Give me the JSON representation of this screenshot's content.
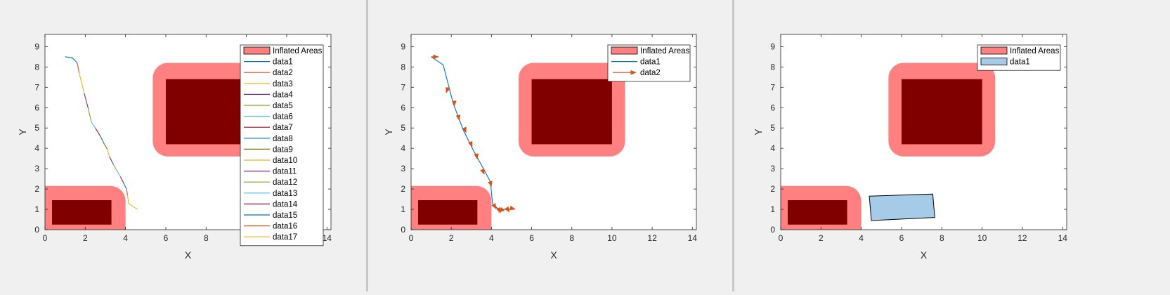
{
  "colors": {
    "inflated": "#ff8080",
    "obstacle": "#800000",
    "plot_background": "#ffffff",
    "figure_background": "#f0f0f0",
    "axis": "#262626",
    "arrow": "#d95319",
    "vehicle_fill": "#a6cbe8"
  },
  "chart_data": [
    {
      "type": "line",
      "xlabel": "X",
      "ylabel": "Y",
      "xlim": [
        0,
        14.2
      ],
      "ylim": [
        0,
        9.6
      ],
      "xticks": [
        "0",
        "2",
        "4",
        "6",
        "8",
        "10",
        "12",
        "14"
      ],
      "yticks": [
        "0",
        "1",
        "2",
        "3",
        "4",
        "5",
        "6",
        "7",
        "8",
        "9"
      ],
      "legend_position": "top-right",
      "legend": [
        "Inflated Areas",
        "data1",
        "data2",
        "data3",
        "data4",
        "data5",
        "data6",
        "data7",
        "data8",
        "data9",
        "data10",
        "data11",
        "data12",
        "data13",
        "data14",
        "data15",
        "data16",
        "data17"
      ],
      "obstacles": [
        {
          "inflated": [
            0,
            0,
            4.0,
            2.15
          ],
          "core": [
            0.35,
            0.25,
            3.3,
            1.45
          ]
        },
        {
          "inflated": [
            5.35,
            3.6,
            10.65,
            8.2
          ],
          "core": [
            6.0,
            4.2,
            10.0,
            7.4
          ]
        }
      ],
      "series": [
        {
          "name": "data1",
          "color": "#0072bd",
          "x": [
            1.0,
            1.35,
            1.6
          ],
          "y": [
            8.5,
            8.45,
            8.2
          ]
        },
        {
          "name": "data2",
          "color": "#d95319",
          "x": [
            1.6,
            1.7
          ],
          "y": [
            8.2,
            7.7
          ]
        },
        {
          "name": "data3",
          "color": "#edb120",
          "x": [
            1.7,
            1.95
          ],
          "y": [
            7.7,
            6.7
          ]
        },
        {
          "name": "data4",
          "color": "#7e2f8e",
          "x": [
            1.95,
            2.15
          ],
          "y": [
            6.7,
            5.95
          ]
        },
        {
          "name": "data5",
          "color": "#77ac30",
          "x": [
            2.15,
            2.3
          ],
          "y": [
            5.95,
            5.3
          ]
        },
        {
          "name": "data6",
          "color": "#4dbeee",
          "x": [
            2.3,
            2.5
          ],
          "y": [
            5.3,
            5.0
          ]
        },
        {
          "name": "data7",
          "color": "#a2142f",
          "x": [
            2.5,
            2.75
          ],
          "y": [
            5.0,
            4.6
          ]
        },
        {
          "name": "data8",
          "color": "#0072bd",
          "x": [
            2.75,
            2.95
          ],
          "y": [
            4.6,
            4.2
          ]
        },
        {
          "name": "data9",
          "color": "#8a6d00",
          "x": [
            2.95,
            3.1
          ],
          "y": [
            4.2,
            3.95
          ]
        },
        {
          "name": "data10",
          "color": "#edb120",
          "x": [
            3.1,
            3.2
          ],
          "y": [
            3.95,
            3.6
          ]
        },
        {
          "name": "data11",
          "color": "#7e2f8e",
          "x": [
            3.2,
            3.4
          ],
          "y": [
            3.6,
            3.2
          ]
        },
        {
          "name": "data12",
          "color": "#77ac30",
          "x": [
            3.4,
            3.6
          ],
          "y": [
            3.2,
            2.85
          ]
        },
        {
          "name": "data13",
          "color": "#4dbeee",
          "x": [
            3.6,
            3.75
          ],
          "y": [
            2.85,
            2.6
          ]
        },
        {
          "name": "data14",
          "color": "#a2142f",
          "x": [
            3.75,
            3.9
          ],
          "y": [
            2.6,
            2.3
          ]
        },
        {
          "name": "data15",
          "color": "#0072bd",
          "x": [
            3.9,
            4.05
          ],
          "y": [
            2.3,
            2.0
          ]
        },
        {
          "name": "data16",
          "color": "#d95319",
          "x": [
            4.05,
            4.1
          ],
          "y": [
            2.0,
            1.7
          ]
        },
        {
          "name": "data17",
          "color": "#edb120",
          "x": [
            4.1,
            4.15,
            4.35,
            4.6
          ],
          "y": [
            1.7,
            1.3,
            1.15,
            1.0
          ]
        }
      ]
    },
    {
      "type": "line",
      "xlabel": "X",
      "ylabel": "Y",
      "xlim": [
        0,
        14.2
      ],
      "ylim": [
        0,
        9.6
      ],
      "xticks": [
        "0",
        "2",
        "4",
        "6",
        "8",
        "10",
        "12",
        "14"
      ],
      "yticks": [
        "0",
        "1",
        "2",
        "3",
        "4",
        "5",
        "6",
        "7",
        "8",
        "9"
      ],
      "legend_position": "top-right",
      "legend": [
        "Inflated Areas",
        "data1",
        "data2"
      ],
      "obstacles": [
        {
          "inflated": [
            0,
            0,
            4.0,
            2.15
          ],
          "core": [
            0.35,
            0.25,
            3.3,
            1.45
          ]
        },
        {
          "inflated": [
            5.35,
            3.6,
            10.65,
            8.2
          ],
          "core": [
            6.0,
            4.2,
            10.0,
            7.4
          ]
        }
      ],
      "series": [
        {
          "name": "data1",
          "color": "#0072bd",
          "x": [
            1.0,
            1.6,
            2.1,
            2.6,
            3.1,
            3.6,
            3.95,
            4.05,
            4.35,
            4.7,
            5.0
          ],
          "y": [
            8.5,
            8.1,
            6.2,
            4.9,
            3.9,
            3.0,
            2.35,
            1.3,
            1.0,
            1.0,
            1.0
          ]
        },
        {
          "name": "data2",
          "color": "#d95319",
          "type": "quiver",
          "x": [
            1.0,
            1.85,
            2.15,
            2.35,
            2.65,
            2.95,
            3.25,
            3.55,
            3.95,
            4.1,
            4.35,
            4.55,
            4.8,
            5.0
          ],
          "y": [
            8.5,
            7.0,
            6.3,
            5.6,
            5.0,
            4.3,
            3.7,
            2.95,
            2.3,
            1.25,
            1.05,
            1.0,
            1.0,
            1.05
          ],
          "u": [
            0.4,
            -0.12,
            0.0,
            0.05,
            0.1,
            0.1,
            0.05,
            0.1,
            0.05,
            0.15,
            0.1,
            -0.2,
            0.1,
            0.2
          ],
          "v": [
            0.0,
            -0.3,
            -0.25,
            -0.25,
            -0.25,
            -0.25,
            -0.25,
            -0.25,
            -0.2,
            -0.25,
            -0.25,
            -0.15,
            -0.15,
            -0.05
          ]
        }
      ]
    },
    {
      "type": "line",
      "xlabel": "X",
      "ylabel": "Y",
      "xlim": [
        0,
        14.2
      ],
      "ylim": [
        0,
        9.6
      ],
      "xticks": [
        "0",
        "2",
        "4",
        "6",
        "8",
        "10",
        "12",
        "14"
      ],
      "yticks": [
        "0",
        "1",
        "2",
        "3",
        "4",
        "5",
        "6",
        "7",
        "8",
        "9"
      ],
      "legend_position": "top-right",
      "legend": [
        "Inflated Areas",
        "data1"
      ],
      "obstacles": [
        {
          "inflated": [
            0,
            0,
            4.0,
            2.15
          ],
          "core": [
            0.35,
            0.25,
            3.3,
            1.45
          ]
        },
        {
          "inflated": [
            5.35,
            3.6,
            10.65,
            8.2
          ],
          "core": [
            6.0,
            4.2,
            10.0,
            7.4
          ]
        }
      ],
      "series": [
        {
          "name": "data1",
          "color": "#a6cbe8",
          "type": "polygon",
          "x": [
            4.4,
            7.55,
            7.65,
            4.5
          ],
          "y": [
            1.65,
            1.75,
            0.6,
            0.45
          ]
        }
      ]
    }
  ]
}
